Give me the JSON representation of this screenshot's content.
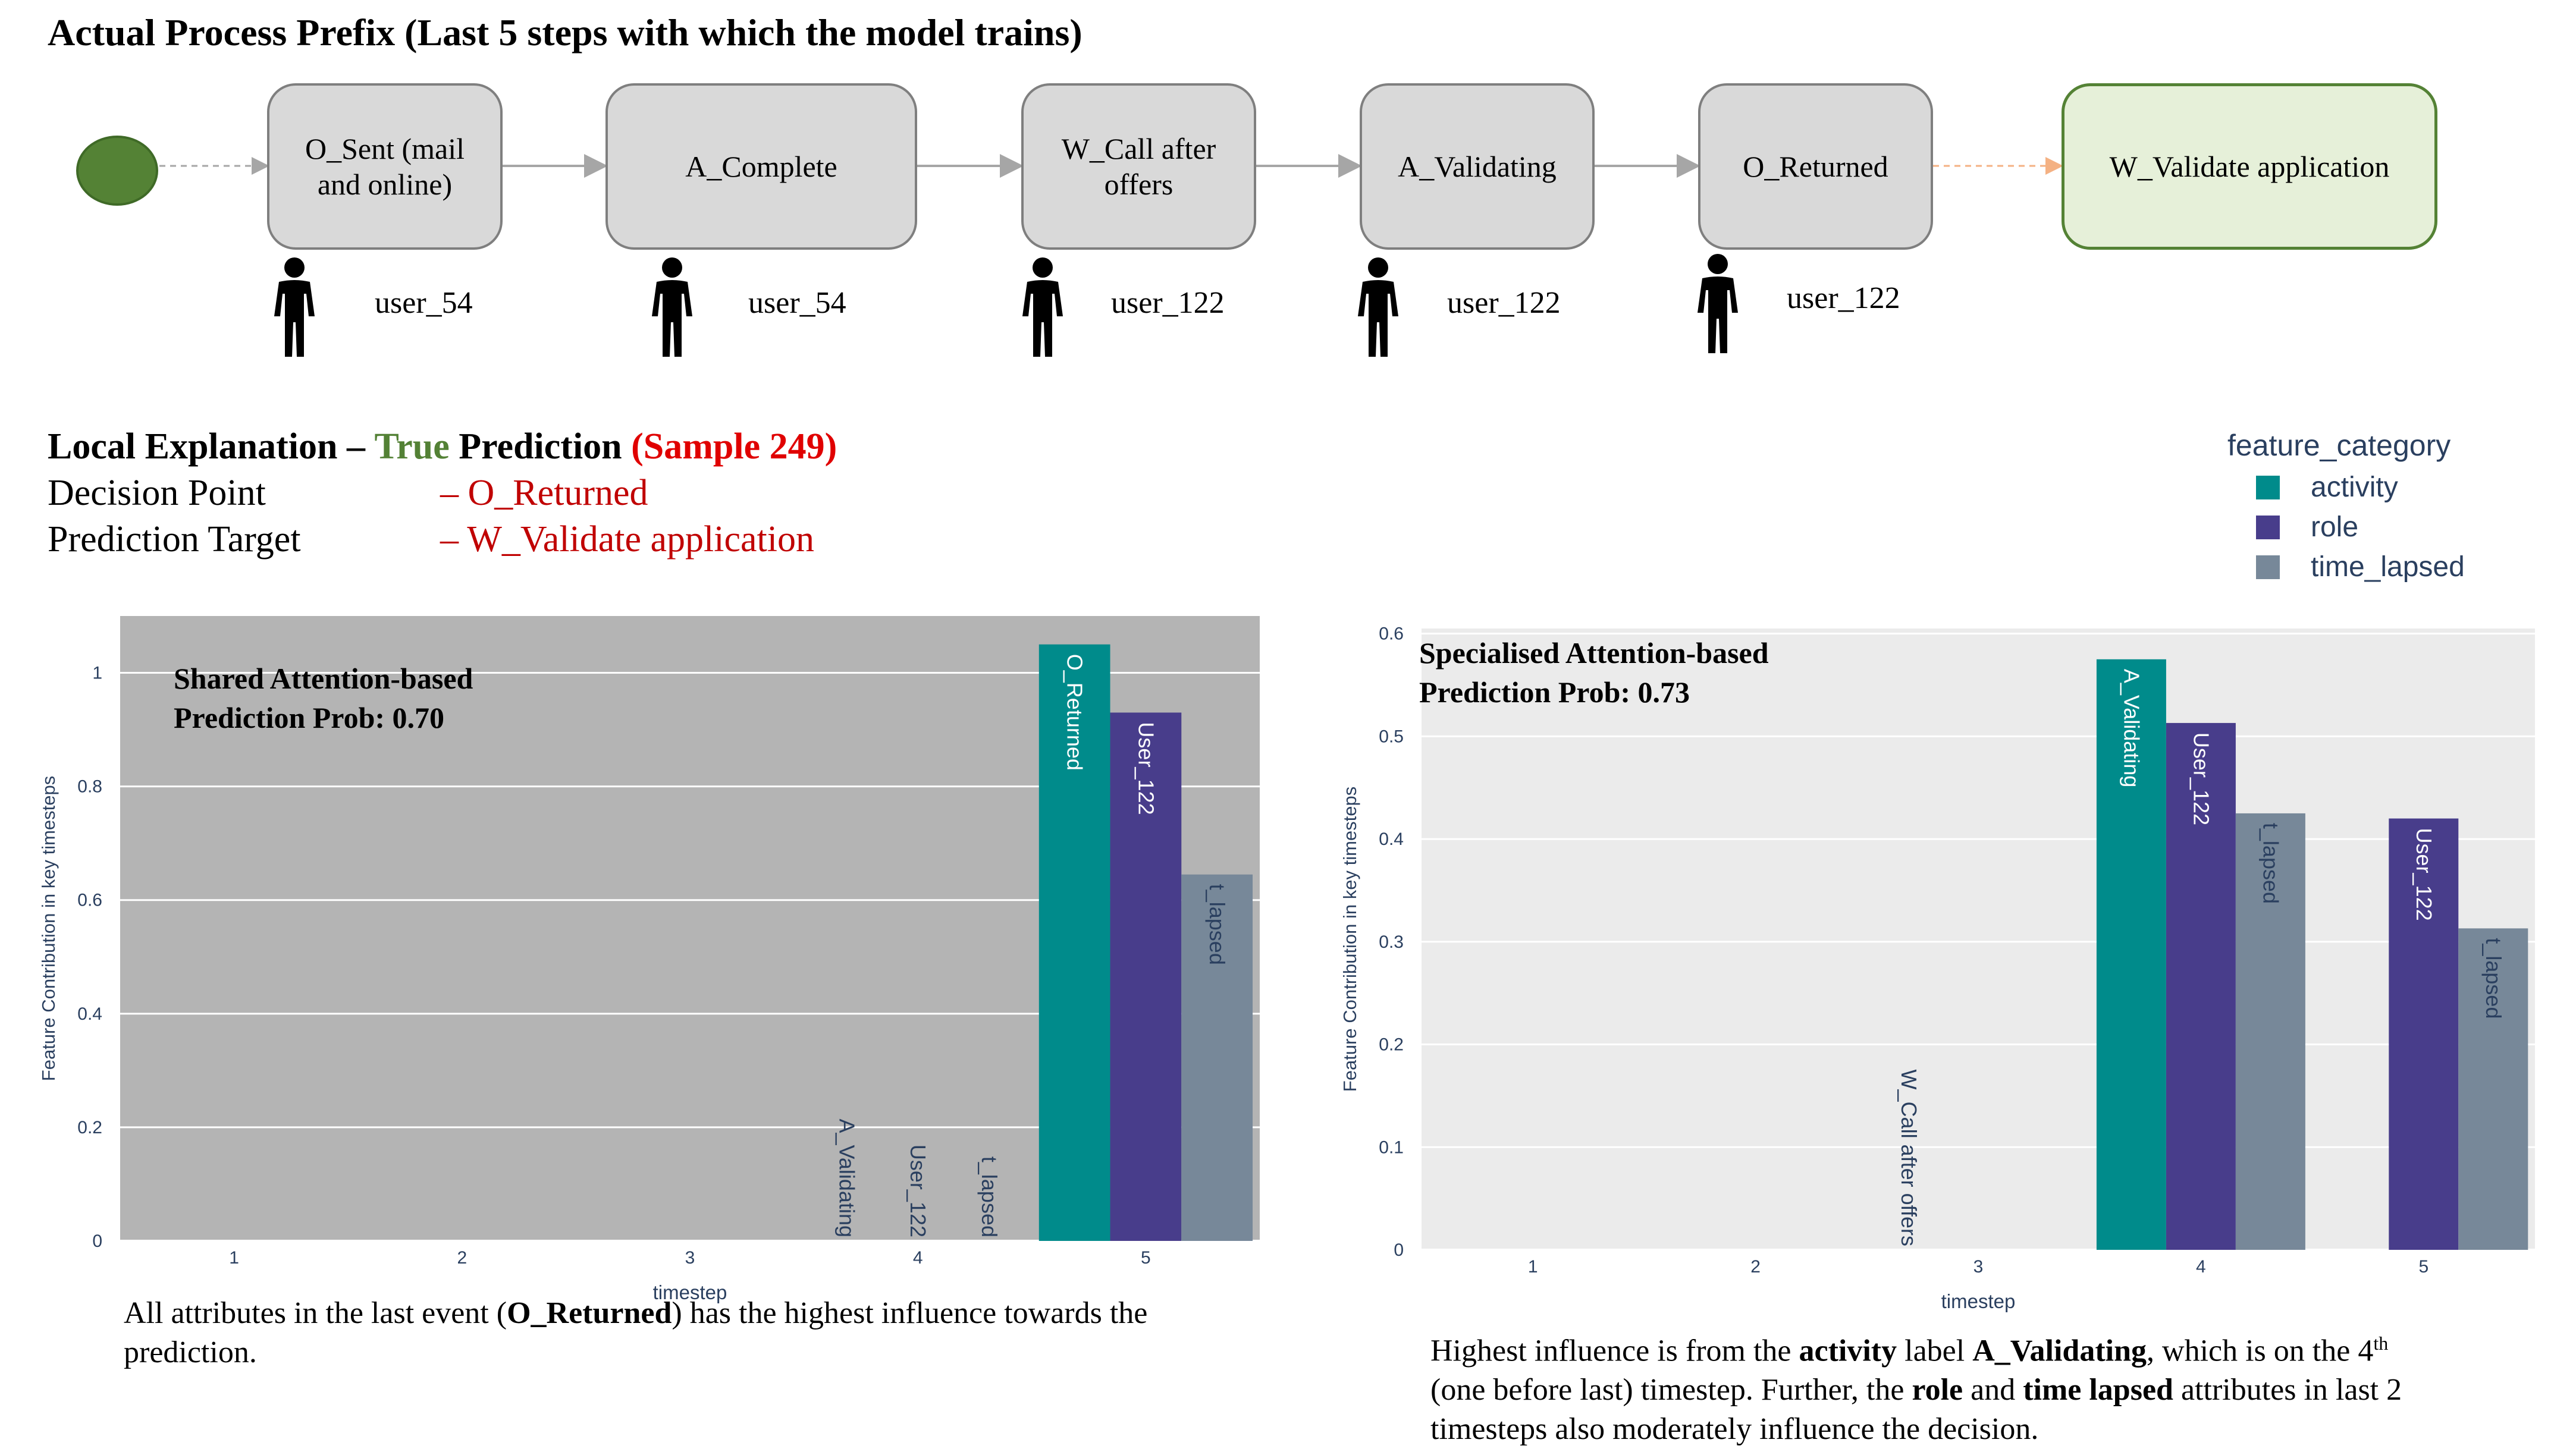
{
  "page_title": "Actual Process Prefix (Last 5 steps with which the model trains)",
  "process": {
    "steps": [
      {
        "label_line1": "O_Sent (mail",
        "label_line2": "and online)",
        "user": "user_54"
      },
      {
        "label_line1": "A_Complete",
        "label_line2": "",
        "user": "user_54"
      },
      {
        "label_line1": "W_Call after",
        "label_line2": "offers",
        "user": "user_122"
      },
      {
        "label_line1": "A_Validating",
        "label_line2": "",
        "user": "user_122"
      },
      {
        "label_line1": "O_Returned",
        "label_line2": "",
        "user": "user_122"
      }
    ],
    "target": "W_Validate application",
    "colors": {
      "start": "#548235",
      "node": "#d9d9d9",
      "target_fill": "#e6f0d9",
      "target_border": "#548235",
      "predicted_arrow": "#f4b183"
    }
  },
  "explanation": {
    "heading_prefix": "Local Explanation –",
    "heading_true": "True",
    "heading_prediction": "Prediction",
    "heading_sample": "(Sample 249)",
    "decision_point_label": "Decision Point",
    "decision_point_value": "– O_Returned",
    "prediction_target_label": "Prediction Target",
    "prediction_target_value": "– W_Validate application"
  },
  "legend": {
    "title": "feature_category",
    "items": [
      {
        "name": "activity",
        "color": "#008b8b"
      },
      {
        "name": "role",
        "color": "#483d8b"
      },
      {
        "name": "time_lapsed",
        "color": "#778899"
      }
    ]
  },
  "captions": {
    "left_part1": "All attributes in the last event (",
    "left_bold": "O_Returned",
    "left_part2": ") has the highest influence towards the",
    "left_line2": "prediction.",
    "right_p1": "Highest influence is from the ",
    "right_b1": "activity",
    "right_p2": " label ",
    "right_b2": "A_Validating",
    "right_p3": ", which is on the 4",
    "right_sup": "th",
    "right_line2a": "(one before last) timestep. Further, the ",
    "right_b3": "role",
    "right_line2b": " and ",
    "right_b4": "time lapsed",
    "right_line2c": " attributes in last 2",
    "right_line3": "timesteps also moderately influence the decision."
  },
  "chart_data": [
    {
      "type": "bar",
      "title": "Shared Attention-based",
      "subtitle": "Prediction Prob: 0.70",
      "xlabel": "timestep",
      "ylabel": "Feature Contribution in key timesteps",
      "categories": [
        "1",
        "2",
        "3",
        "4",
        "5"
      ],
      "ylim": [
        0,
        1.1
      ],
      "yticks": [
        0,
        0.2,
        0.4,
        0.6,
        0.8,
        1
      ],
      "ytick_labels": [
        "0",
        "0.2",
        "0.4",
        "0.6",
        "0.8",
        "1"
      ],
      "background": "#b4b4b4",
      "series": [
        {
          "name": "activity",
          "color": "#008b8b",
          "values": [
            0,
            0,
            0,
            0,
            1.05
          ],
          "labels": [
            "",
            "",
            "",
            "A_Validating",
            "O_Returned"
          ]
        },
        {
          "name": "role",
          "color": "#483d8b",
          "values": [
            0,
            0,
            0,
            0,
            0.93
          ],
          "labels": [
            "",
            "",
            "",
            "User_122",
            "User_122"
          ]
        },
        {
          "name": "time_lapsed",
          "color": "#778899",
          "values": [
            0,
            0,
            0,
            0,
            0.645
          ],
          "labels": [
            "",
            "",
            "",
            "t_lapsed",
            "t_lapsed"
          ]
        }
      ]
    },
    {
      "type": "bar",
      "title": "Specialised Attention-based",
      "subtitle": "Prediction Prob: 0.73",
      "xlabel": "timestep",
      "ylabel": "Feature Contribution in key timesteps",
      "categories": [
        "1",
        "2",
        "3",
        "4",
        "5"
      ],
      "ylim": [
        0,
        0.605
      ],
      "yticks": [
        0,
        0.1,
        0.2,
        0.3,
        0.4,
        0.5,
        0.6
      ],
      "ytick_labels": [
        "0",
        "0.1",
        "0.2",
        "0.3",
        "0.4",
        "0.5",
        "0.6"
      ],
      "background": "#ebebeb",
      "series": [
        {
          "name": "activity",
          "color": "#008b8b",
          "values": [
            0,
            0,
            0,
            0.575,
            0
          ],
          "labels": [
            "",
            "",
            "W_Call after offers",
            "A_Validating",
            ""
          ]
        },
        {
          "name": "role",
          "color": "#483d8b",
          "values": [
            0,
            0,
            0,
            0.513,
            0.42
          ],
          "labels": [
            "",
            "",
            "",
            "User_122",
            "User_122"
          ]
        },
        {
          "name": "time_lapsed",
          "color": "#778899",
          "values": [
            0,
            0,
            0,
            0.425,
            0.313
          ],
          "labels": [
            "",
            "",
            "",
            "t_lapsed",
            "t_lapsed"
          ]
        }
      ]
    }
  ]
}
